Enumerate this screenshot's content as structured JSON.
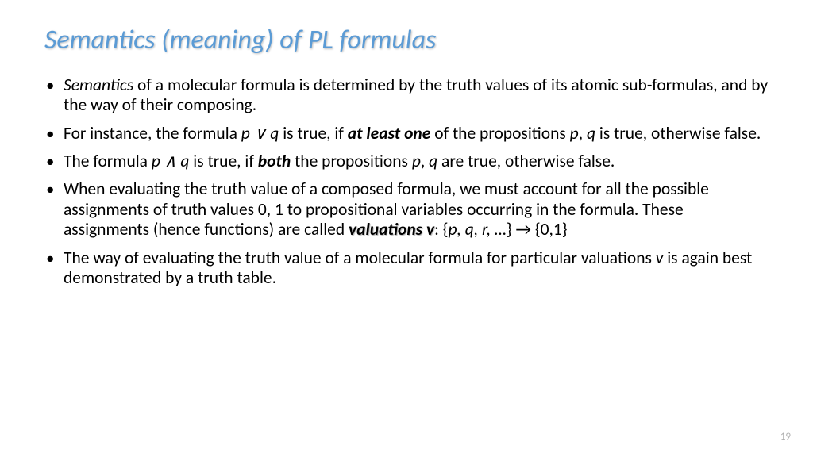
{
  "title": "Semantics (meaning) of PL formulas",
  "bullets": {
    "b1_pre": "Semantics",
    "b1_rest": " of a molecular formula is determined by the truth values of its atomic sub-formulas, and by the way of their composing.",
    "b2_pre": "For instance, the formula ",
    "b2_pq": "p ∨ q",
    "b2_mid": " is true, if ",
    "b2_bold": "at least one",
    "b2_mid2": " of the propositions ",
    "b2_p": "p",
    "b2_comma": ", ",
    "b2_q": "q",
    "b2_end": " is true, otherwise false.",
    "b3_pre": "The formula ",
    "b3_pq": "p ∧ q",
    "b3_mid": " is true, if ",
    "b3_bold": "both",
    "b3_mid2": " the propositions ",
    "b3_p": "p",
    "b3_comma": ", ",
    "b3_q": "q",
    "b3_end": " are true, otherwise false.",
    "b4_pre": "When evaluating the truth value of a composed formula, we must account for all the possible assignments of truth values 0, 1 to propositional variables occurring in the formula. These assignments (hence functions) are called ",
    "b4_val": "valuations v",
    "b4_colon": ": {",
    "b4_set": "p, q, r, …",
    "b4_brace": "} ",
    "b4_arrow": "→",
    "b4_end": " {0,1}",
    "b5_pre": "The way of evaluating the truth value of a molecular formula for particular valuations ",
    "b5_v": "v",
    "b5_end": " is again best demonstrated by a truth table."
  },
  "page_number": "19",
  "colors": {
    "title": "#5b9bd5",
    "text": "#000000",
    "page_num": "#b0b0b0",
    "background": "#ffffff"
  },
  "fonts": {
    "title_size": 34,
    "body_size": 21.5,
    "page_num_size": 13
  }
}
